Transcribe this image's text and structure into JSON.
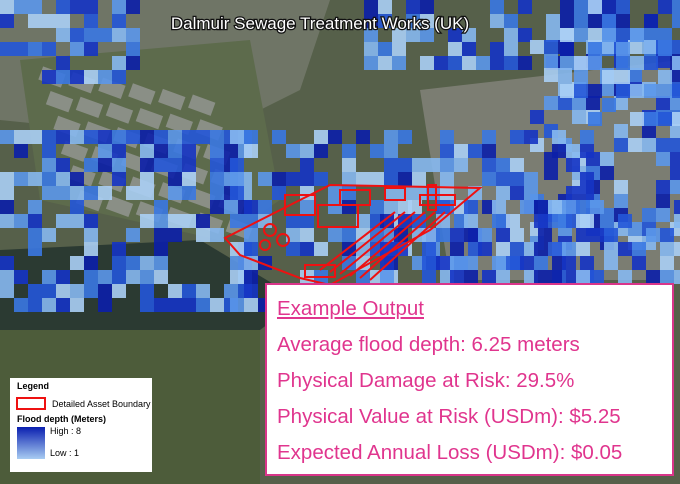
{
  "map": {
    "title": "Dalmuir Sewage Treatment Works (UK)"
  },
  "legend": {
    "title": "Legend",
    "boundary": "Detailed Asset Boundary",
    "depth_title": "Flood depth (Meters)",
    "high": "High : 8",
    "low": "Low : 1"
  },
  "output": {
    "heading": "Example Output",
    "lines": [
      "Average flood depth: 6.25 meters",
      "Physical Damage at Risk: 29.5%",
      "Physical Value at Risk (USDm): $5.25",
      "Expected Annual Loss (USDm): $0.05"
    ]
  }
}
